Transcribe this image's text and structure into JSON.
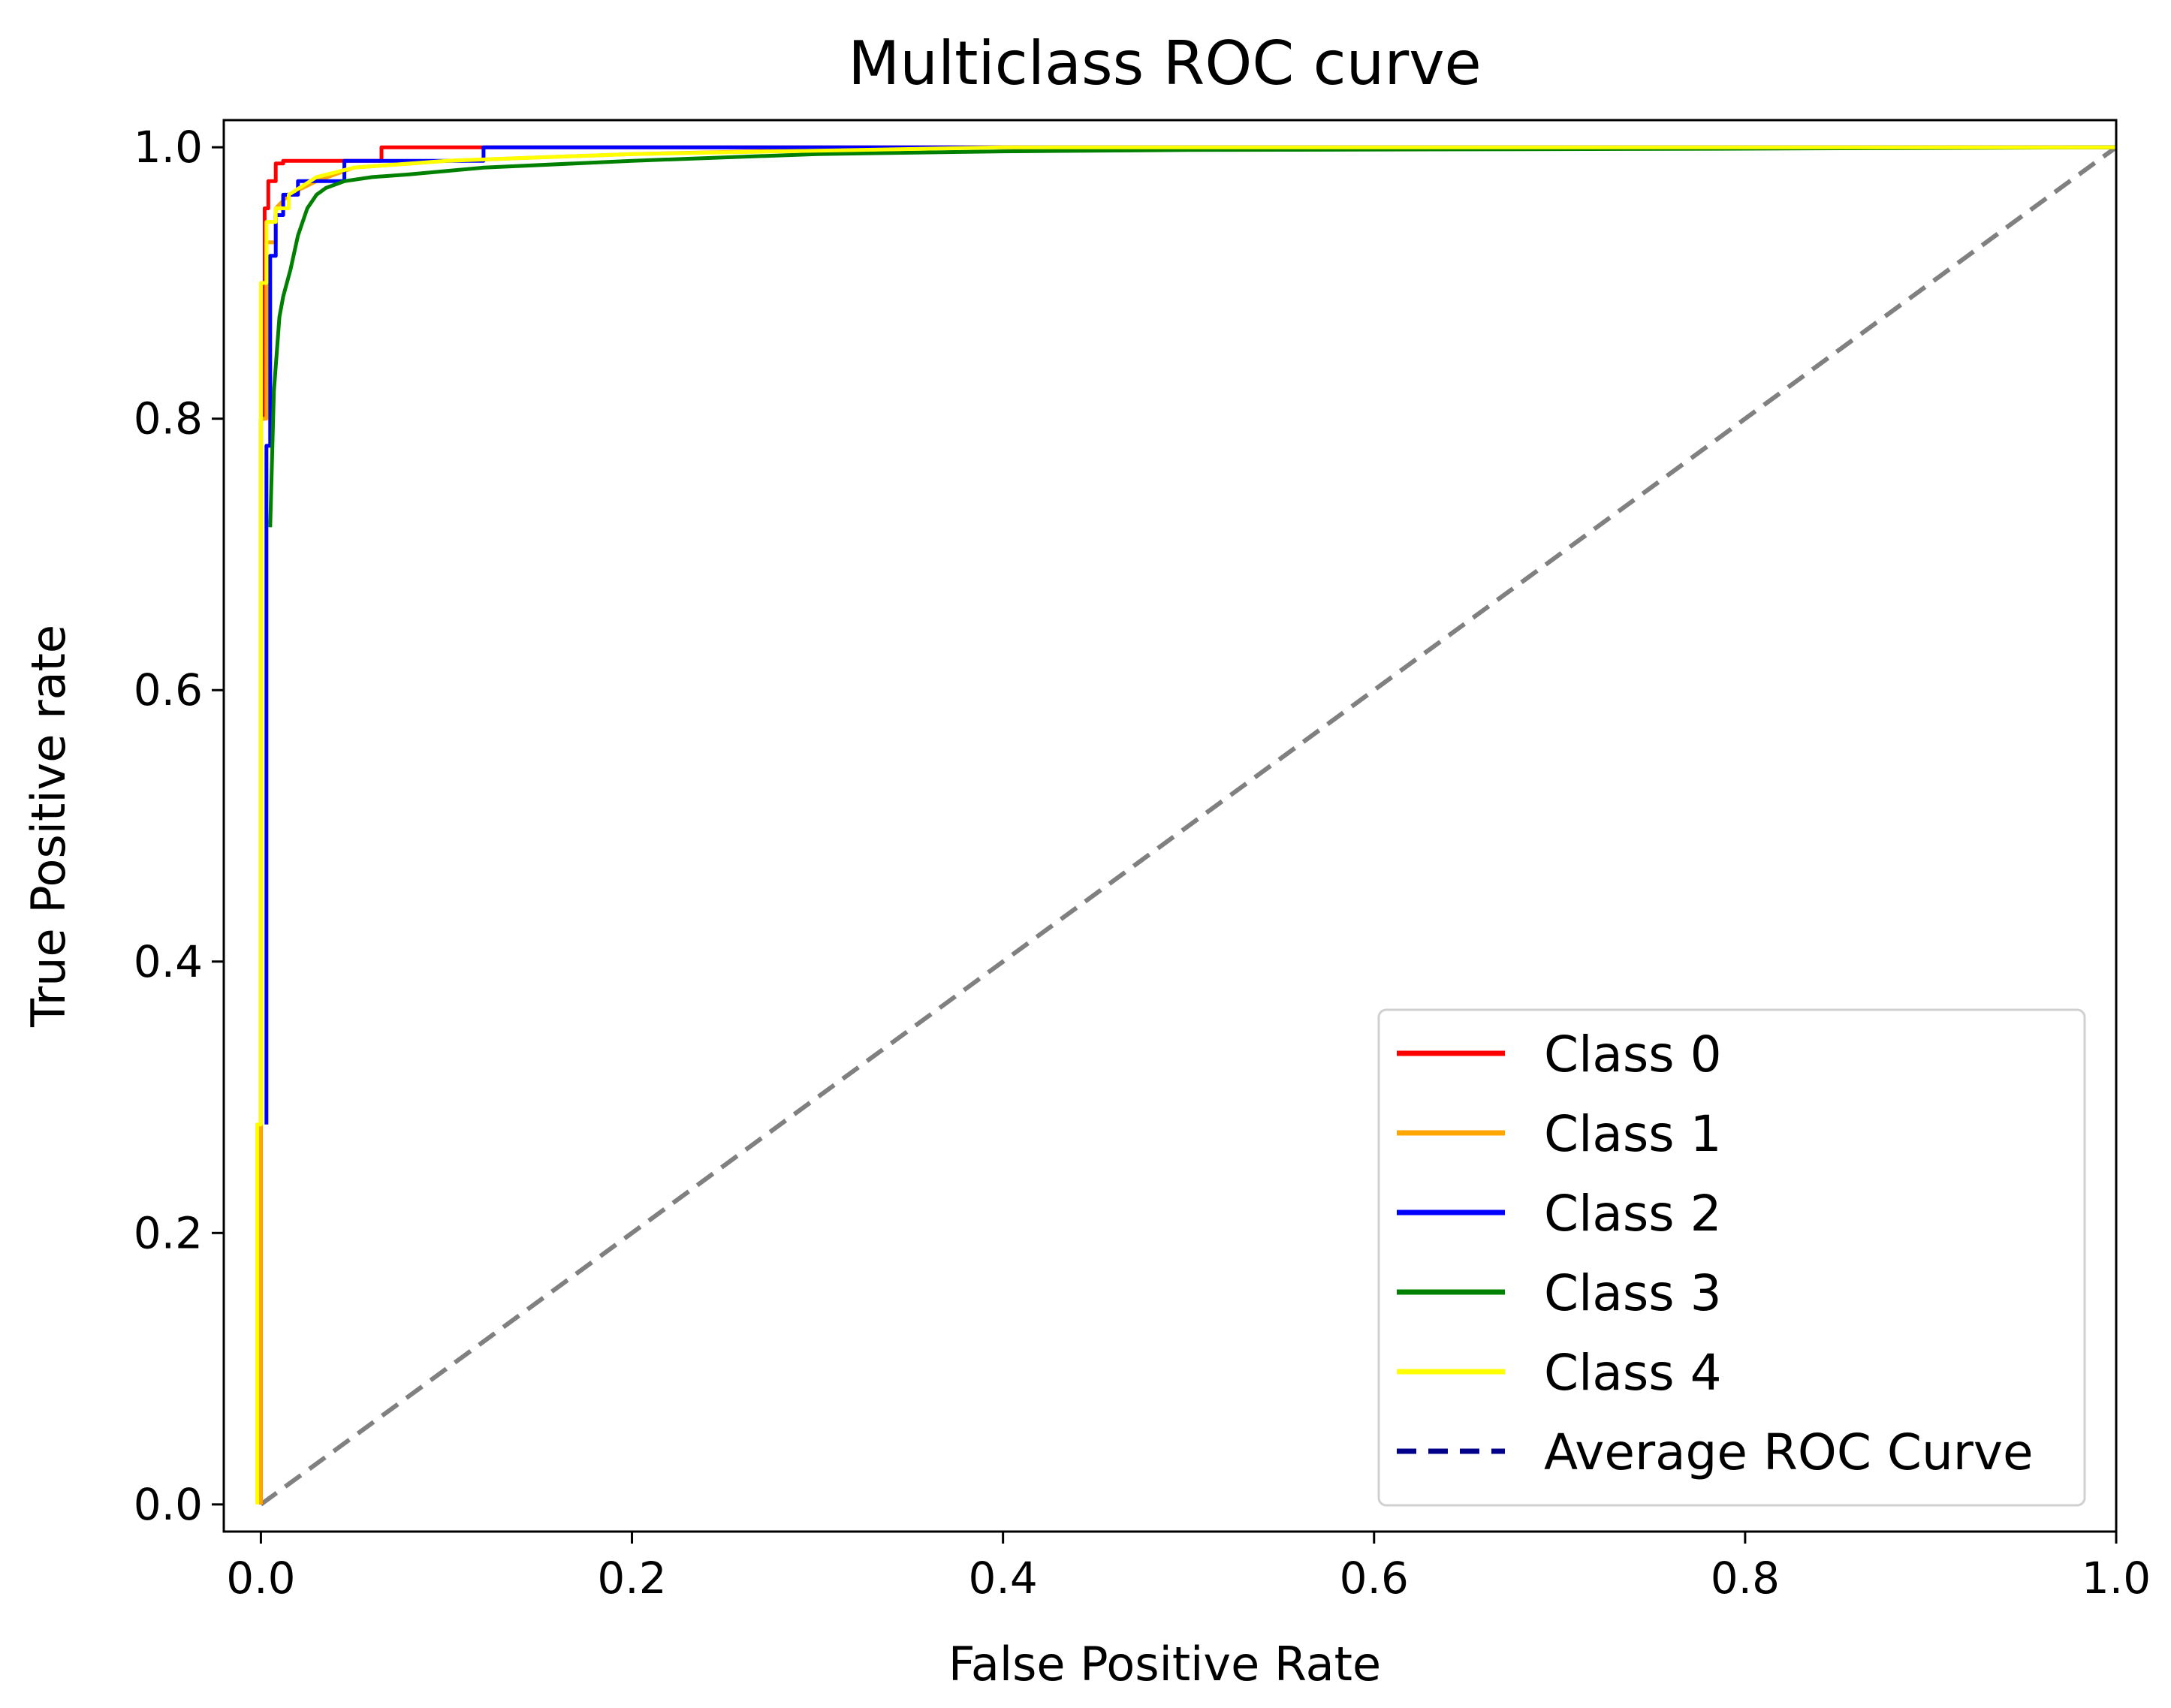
{
  "chart_data": {
    "type": "line",
    "title": "Multiclass ROC curve",
    "xlabel": "False Positive Rate",
    "ylabel": "True Positive rate",
    "xlim": [
      -0.02,
      1.0
    ],
    "ylim": [
      -0.02,
      1.02
    ],
    "xticks": [
      0.0,
      0.2,
      0.4,
      0.6,
      0.8,
      1.0
    ],
    "xtick_labels": [
      "0.0",
      "0.2",
      "0.4",
      "0.6",
      "0.8",
      "1.0"
    ],
    "yticks": [
      0.0,
      0.2,
      0.4,
      0.6,
      0.8,
      1.0
    ],
    "ytick_labels": [
      "0.0",
      "0.2",
      "0.4",
      "0.6",
      "0.8",
      "1.0"
    ],
    "legend_position": "bottom-right",
    "series": [
      {
        "name": "Class 0",
        "color": "#ff0000",
        "style": "solid",
        "x": [
          0.0,
          0.0,
          0.002,
          0.002,
          0.004,
          0.004,
          0.008,
          0.008,
          0.012,
          0.012,
          0.065,
          0.065,
          0.2,
          0.2,
          0.37,
          0.37,
          1.0
        ],
        "y": [
          0.0,
          0.8,
          0.8,
          0.955,
          0.955,
          0.975,
          0.975,
          0.988,
          0.988,
          0.99,
          0.99,
          1.0,
          1.0,
          1.0,
          1.0,
          1.0,
          1.0
        ]
      },
      {
        "name": "Class 1",
        "color": "#ffa500",
        "style": "solid",
        "x": [
          0.0,
          0.0,
          0.003,
          0.003,
          0.008,
          0.008,
          0.015,
          0.03,
          0.05,
          0.1,
          0.2,
          0.3,
          0.4,
          1.0
        ],
        "y": [
          0.0,
          0.8,
          0.8,
          0.93,
          0.93,
          0.955,
          0.965,
          0.975,
          0.985,
          0.99,
          0.995,
          0.998,
          1.0,
          1.0
        ]
      },
      {
        "name": "Class 2",
        "color": "#0000ff",
        "style": "solid",
        "x": [
          0.003,
          0.003,
          0.005,
          0.005,
          0.008,
          0.008,
          0.012,
          0.012,
          0.02,
          0.02,
          0.045,
          0.045,
          0.12,
          0.12,
          0.3,
          1.0
        ],
        "y": [
          0.28,
          0.78,
          0.78,
          0.92,
          0.92,
          0.95,
          0.95,
          0.965,
          0.965,
          0.975,
          0.975,
          0.99,
          0.99,
          1.0,
          1.0,
          1.0
        ]
      },
      {
        "name": "Class 3",
        "color": "#008000",
        "style": "solid",
        "x": [
          0.005,
          0.007,
          0.01,
          0.012,
          0.016,
          0.02,
          0.025,
          0.03,
          0.035,
          0.045,
          0.06,
          0.08,
          0.12,
          0.2,
          0.3,
          0.4,
          0.5,
          0.8,
          1.0
        ],
        "y": [
          0.72,
          0.82,
          0.875,
          0.89,
          0.91,
          0.935,
          0.955,
          0.965,
          0.97,
          0.975,
          0.978,
          0.98,
          0.985,
          0.99,
          0.995,
          0.997,
          0.998,
          0.999,
          1.0
        ]
      },
      {
        "name": "Class 4",
        "color": "#ffff00",
        "style": "solid",
        "x": [
          -0.002,
          -0.002,
          0.0,
          0.0,
          0.003,
          0.003,
          0.008,
          0.008,
          0.015,
          0.015,
          0.03,
          0.05,
          0.1,
          0.2,
          0.4,
          0.6,
          1.0
        ],
        "y": [
          0.0,
          0.28,
          0.28,
          0.9,
          0.9,
          0.945,
          0.945,
          0.955,
          0.955,
          0.965,
          0.978,
          0.985,
          0.99,
          0.995,
          1.0,
          1.0,
          1.0
        ]
      },
      {
        "name": "Average ROC Curve",
        "color": "#00008b",
        "style": "dashed",
        "x": [
          0.0,
          1.0
        ],
        "y": [
          0.0,
          1.0
        ]
      }
    ],
    "reference_line": {
      "name": "chance-diagonal",
      "color": "#808080",
      "style": "dashed",
      "x": [
        0.0,
        1.0
      ],
      "y": [
        0.0,
        1.0
      ]
    }
  }
}
